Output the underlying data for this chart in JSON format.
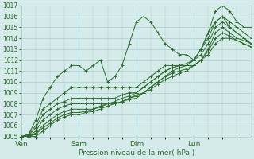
{
  "xlabel": "Pression niveau de la mer( hPa )",
  "background_color": "#d4ebe9",
  "grid_color": "#aacccc",
  "line_color": "#2d6a2d",
  "ylim": [
    1005,
    1017
  ],
  "xlim": [
    0,
    96
  ],
  "yticks": [
    1005,
    1006,
    1007,
    1008,
    1009,
    1010,
    1011,
    1012,
    1013,
    1014,
    1015,
    1016,
    1017
  ],
  "xtick_positions": [
    0,
    24,
    48,
    72
  ],
  "xtick_labels": [
    "Ven",
    "Sam",
    "Dim",
    "Lun"
  ],
  "vlines": [
    24,
    48,
    72
  ],
  "series": [
    {
      "x": [
        0,
        3,
        6,
        9,
        12,
        15,
        18,
        21,
        24,
        27,
        30,
        33,
        36,
        39,
        42,
        45,
        48,
        51,
        54,
        57,
        60,
        63,
        66,
        69,
        72,
        75,
        78,
        81,
        84,
        87,
        90,
        93,
        96
      ],
      "y": [
        1005.0,
        1005.2,
        1006.5,
        1008.5,
        1009.5,
        1010.5,
        1011.0,
        1011.5,
        1011.5,
        1011.0,
        1011.5,
        1012.0,
        1010.0,
        1010.5,
        1011.5,
        1013.5,
        1015.5,
        1016.0,
        1015.5,
        1014.5,
        1013.5,
        1013.0,
        1012.5,
        1012.5,
        1012.0,
        1013.0,
        1014.5,
        1016.5,
        1017.0,
        1016.5,
        1015.5,
        1015.0,
        1015.0
      ]
    },
    {
      "x": [
        0,
        3,
        6,
        9,
        12,
        15,
        18,
        21,
        24,
        27,
        30,
        33,
        36,
        39,
        42,
        45,
        48,
        51,
        54,
        57,
        60,
        63,
        66,
        69,
        72,
        75,
        78,
        81,
        84,
        87,
        90,
        93,
        96
      ],
      "y": [
        1005.0,
        1005.2,
        1006.0,
        1007.5,
        1008.0,
        1008.5,
        1009.0,
        1009.5,
        1009.5,
        1009.5,
        1009.5,
        1009.5,
        1009.5,
        1009.5,
        1009.5,
        1009.5,
        1009.5,
        1010.0,
        1010.5,
        1011.0,
        1011.5,
        1011.5,
        1011.5,
        1011.5,
        1012.0,
        1013.0,
        1014.0,
        1015.5,
        1016.0,
        1015.5,
        1015.0,
        1014.5,
        1014.0
      ]
    },
    {
      "x": [
        0,
        3,
        6,
        9,
        12,
        15,
        18,
        21,
        24,
        27,
        30,
        33,
        36,
        39,
        42,
        45,
        48,
        51,
        54,
        57,
        60,
        63,
        66,
        69,
        72,
        75,
        78,
        81,
        84,
        87,
        90,
        93,
        96
      ],
      "y": [
        1005.0,
        1005.1,
        1005.8,
        1007.0,
        1007.5,
        1008.0,
        1008.2,
        1008.5,
        1008.5,
        1008.5,
        1008.5,
        1008.5,
        1008.5,
        1008.5,
        1008.8,
        1009.0,
        1009.0,
        1009.5,
        1010.0,
        1010.5,
        1011.0,
        1011.3,
        1011.5,
        1011.5,
        1012.0,
        1013.0,
        1014.5,
        1015.5,
        1016.0,
        1015.0,
        1014.5,
        1014.0,
        1013.5
      ]
    },
    {
      "x": [
        0,
        3,
        6,
        9,
        12,
        15,
        18,
        21,
        24,
        27,
        30,
        33,
        36,
        39,
        42,
        45,
        48,
        51,
        54,
        57,
        60,
        63,
        66,
        69,
        72,
        75,
        78,
        81,
        84,
        87,
        90,
        93,
        96
      ],
      "y": [
        1005.0,
        1005.0,
        1005.5,
        1006.5,
        1007.0,
        1007.5,
        1007.8,
        1008.0,
        1008.0,
        1008.0,
        1008.0,
        1008.0,
        1008.0,
        1008.2,
        1008.5,
        1008.7,
        1009.0,
        1009.5,
        1010.0,
        1010.5,
        1011.0,
        1011.3,
        1011.5,
        1011.7,
        1012.0,
        1012.5,
        1013.5,
        1015.0,
        1015.5,
        1015.0,
        1014.5,
        1014.0,
        1013.5
      ]
    },
    {
      "x": [
        0,
        3,
        6,
        9,
        12,
        15,
        18,
        21,
        24,
        27,
        30,
        33,
        36,
        39,
        42,
        45,
        48,
        51,
        54,
        57,
        60,
        63,
        66,
        69,
        72,
        75,
        78,
        81,
        84,
        87,
        90,
        93,
        96
      ],
      "y": [
        1005.0,
        1005.0,
        1005.3,
        1006.0,
        1006.5,
        1007.0,
        1007.3,
        1007.5,
        1007.5,
        1007.5,
        1007.5,
        1007.8,
        1008.0,
        1008.0,
        1008.2,
        1008.5,
        1008.8,
        1009.0,
        1009.5,
        1010.0,
        1010.5,
        1011.0,
        1011.3,
        1011.5,
        1011.5,
        1012.0,
        1013.0,
        1014.5,
        1015.0,
        1014.5,
        1014.0,
        1013.8,
        1013.5
      ]
    },
    {
      "x": [
        0,
        3,
        6,
        9,
        12,
        15,
        18,
        21,
        24,
        27,
        30,
        33,
        36,
        39,
        42,
        45,
        48,
        51,
        54,
        57,
        60,
        63,
        66,
        69,
        72,
        75,
        78,
        81,
        84,
        87,
        90,
        93,
        96
      ],
      "y": [
        1005.0,
        1005.0,
        1005.2,
        1005.8,
        1006.2,
        1006.7,
        1007.0,
        1007.2,
        1007.2,
        1007.3,
        1007.5,
        1007.7,
        1008.0,
        1008.0,
        1008.2,
        1008.5,
        1008.7,
        1009.0,
        1009.5,
        1010.0,
        1010.5,
        1010.8,
        1011.0,
        1011.2,
        1011.5,
        1012.0,
        1012.8,
        1014.0,
        1014.5,
        1014.2,
        1013.8,
        1013.5,
        1013.2
      ]
    },
    {
      "x": [
        0,
        3,
        6,
        9,
        12,
        15,
        18,
        21,
        24,
        27,
        30,
        33,
        36,
        39,
        42,
        45,
        48,
        51,
        54,
        57,
        60,
        63,
        66,
        69,
        72,
        75,
        78,
        81,
        84,
        87,
        90,
        93,
        96
      ],
      "y": [
        1005.0,
        1005.0,
        1005.0,
        1005.5,
        1006.0,
        1006.5,
        1006.8,
        1007.0,
        1007.0,
        1007.2,
        1007.3,
        1007.5,
        1007.8,
        1008.0,
        1008.2,
        1008.4,
        1008.5,
        1009.0,
        1009.3,
        1009.8,
        1010.2,
        1010.5,
        1010.8,
        1011.0,
        1011.5,
        1012.0,
        1012.5,
        1013.5,
        1014.0,
        1014.0,
        1013.8,
        1013.5,
        1013.2
      ]
    }
  ]
}
